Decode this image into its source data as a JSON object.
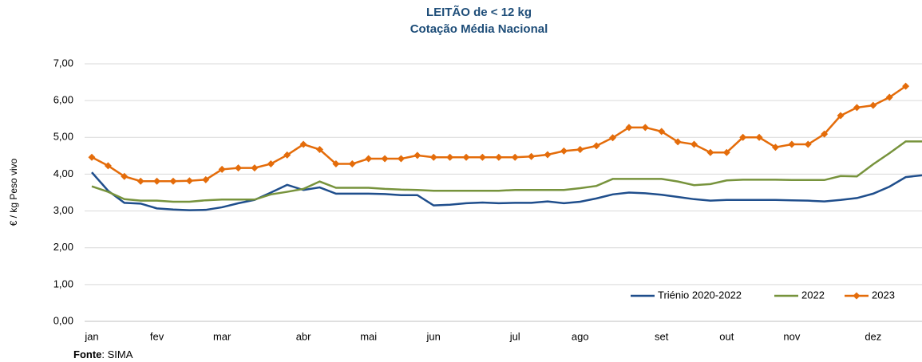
{
  "chart_data": {
    "type": "line",
    "title": "LEITÃO de < 12 kg",
    "subtitle": "Cotação Média Nacional",
    "y_label": "€ / kg Peso vivo",
    "source_label": "Fonte",
    "source": ": SIMA",
    "categories": [
      "jan",
      null,
      null,
      null,
      "fev",
      null,
      null,
      null,
      "mar",
      null,
      null,
      null,
      null,
      "abr",
      null,
      null,
      null,
      "mai",
      null,
      null,
      null,
      "jun",
      null,
      null,
      null,
      null,
      "jul",
      null,
      null,
      null,
      "ago",
      null,
      null,
      null,
      null,
      "set",
      null,
      null,
      null,
      "out",
      null,
      null,
      null,
      "nov",
      null,
      null,
      null,
      null,
      "dez",
      null,
      null,
      null
    ],
    "series": [
      {
        "name": "Triénio 2020-2022",
        "color": "#1f4e8c",
        "marker": false,
        "values": [
          4.05,
          3.55,
          3.22,
          3.2,
          3.07,
          3.04,
          3.02,
          3.03,
          3.1,
          3.21,
          3.3,
          3.5,
          3.71,
          3.57,
          3.64,
          3.47,
          3.47,
          3.47,
          3.46,
          3.43,
          3.43,
          3.15,
          3.17,
          3.21,
          3.23,
          3.21,
          3.22,
          3.22,
          3.26,
          3.21,
          3.25,
          3.34,
          3.45,
          3.5,
          3.48,
          3.44,
          3.38,
          3.32,
          3.28,
          3.3,
          3.3,
          3.3,
          3.3,
          3.29,
          3.28,
          3.26,
          3.3,
          3.35,
          3.47,
          3.66,
          3.92,
          3.97
        ]
      },
      {
        "name": "2022",
        "color": "#77933c",
        "marker": false,
        "values": [
          3.67,
          3.52,
          3.32,
          3.28,
          3.28,
          3.25,
          3.25,
          3.29,
          3.31,
          3.31,
          3.31,
          3.45,
          3.52,
          3.6,
          3.8,
          3.63,
          3.63,
          3.63,
          3.6,
          3.58,
          3.57,
          3.55,
          3.55,
          3.55,
          3.55,
          3.55,
          3.57,
          3.57,
          3.57,
          3.57,
          3.62,
          3.68,
          3.87,
          3.87,
          3.87,
          3.87,
          3.8,
          3.7,
          3.73,
          3.83,
          3.85,
          3.85,
          3.85,
          3.84,
          3.84,
          3.84,
          3.95,
          3.94,
          4.27,
          4.57,
          4.89,
          4.89
        ]
      },
      {
        "name": "2023",
        "color": "#e46c0a",
        "marker": true,
        "values": [
          4.46,
          4.23,
          3.94,
          3.81,
          3.81,
          3.81,
          3.82,
          3.85,
          4.13,
          4.17,
          4.17,
          4.28,
          4.52,
          4.81,
          4.67,
          4.28,
          4.28,
          4.42,
          4.42,
          4.42,
          4.51,
          4.46,
          4.46,
          4.46,
          4.46,
          4.46,
          4.46,
          4.48,
          4.53,
          4.63,
          4.67,
          4.77,
          4.99,
          5.27,
          5.27,
          5.16,
          4.88,
          4.81,
          4.59,
          4.59,
          5.0,
          5.0,
          4.73,
          4.81,
          4.81,
          5.09,
          5.59,
          5.81,
          5.87,
          6.09,
          6.39,
          null
        ]
      }
    ],
    "ylim": [
      0,
      7
    ],
    "yticks": [
      {
        "value": 0,
        "label": "0,00"
      },
      {
        "value": 1,
        "label": "1,00"
      },
      {
        "value": 2,
        "label": "2,00"
      },
      {
        "value": 3,
        "label": "3,00"
      },
      {
        "value": 4,
        "label": "4,00"
      },
      {
        "value": 5,
        "label": "5,00"
      },
      {
        "value": 6,
        "label": "6,00"
      },
      {
        "value": 7,
        "label": "7,00"
      }
    ],
    "grid": true,
    "legend": "bottom-right"
  }
}
